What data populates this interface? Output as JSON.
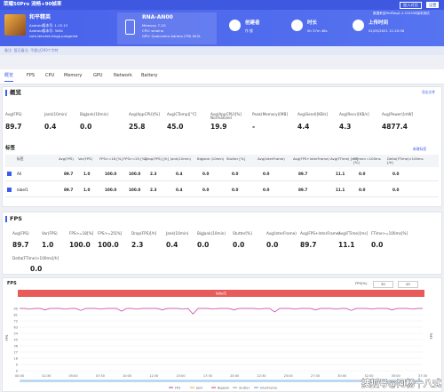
{
  "topbar": {
    "title": "荣耀50Pro 流畅+90帧率",
    "buttons": [
      "加入对比",
      "设置"
    ]
  },
  "header": {
    "app": {
      "name": "和平精英",
      "lines": [
        "Android版本号: 1.15.13",
        "Android版本号: 3061",
        "com.tencent.tmgp.pubgmhd"
      ]
    },
    "device": {
      "name": "RNA-AN00",
      "lines": [
        "Memory: 7.2G",
        "CPU: smalna",
        "GPU: Qualcomm Adreno (TM) 642L"
      ]
    },
    "creator": {
      "label": "创建者",
      "value": "作 掳"
    },
    "duration": {
      "label": "时长",
      "value": "0h 37m 48s"
    },
    "upload": {
      "label": "上传时间",
      "value": "01/05/2021 11:20:36"
    },
    "source": "数据来自PerfDog1.2.210330版本测试"
  },
  "remark": "备注: 暂无备注, 不超过200个字符",
  "tabs": [
    "概览",
    "FPS",
    "CPU",
    "Memory",
    "GPU",
    "Network",
    "Battery"
  ],
  "overview": {
    "title": "概览",
    "export": "导出文件",
    "metrics": [
      {
        "label": "Avg(FPS)",
        "value": "89.7"
      },
      {
        "label": "Jank(10min)",
        "value": "0.4"
      },
      {
        "label": "BigJank(10min)",
        "value": "0.0"
      },
      {
        "label": "Avg(AppCPU)[%]",
        "value": "25.8"
      },
      {
        "label": "Avg(CTemp)[°C]",
        "value": "45.0"
      },
      {
        "label": "Avg(AppCPU)[%] Normalized",
        "value": "19.9"
      },
      {
        "label": "Peak(Memory)[MB]",
        "value": "-"
      },
      {
        "label": "Avg(Send)[KB/s]",
        "value": "4.4"
      },
      {
        "label": "Avg(Recv)[KB/s]",
        "value": "4.3"
      },
      {
        "label": "Avg(Power)[mW]",
        "value": "4877.4"
      }
    ],
    "tags": {
      "title": "标签",
      "link": "新增标签",
      "columns": [
        "标签",
        "Avg(FPS)",
        "Var(FPS)",
        "FPS>=18 [%]",
        "FPS>=25 [%]",
        "Drop(FPS) [/h]",
        "Jank(10min)",
        "BigJank (10min)",
        "Stutter [%]",
        "Avg(InterFrame)",
        "Avg(FPS+InterFrame)",
        "Avg(FTime) [ms]",
        "FTime>=100ms [%]",
        "Delta(FTime)>100ms [/h]"
      ],
      "rows": [
        [
          "All",
          "89.7",
          "1.0",
          "100.0",
          "100.0",
          "2.3",
          "0.4",
          "0.0",
          "0.0",
          "0.0",
          "89.7",
          "11.1",
          "0.0",
          "0.0"
        ],
        [
          "label1",
          "89.7",
          "1.0",
          "100.0",
          "100.0",
          "2.3",
          "0.4",
          "0.0",
          "0.0",
          "0.0",
          "89.7",
          "11.1",
          "0.0",
          "0.0"
        ]
      ]
    }
  },
  "fps": {
    "title": "FPS",
    "metrics": [
      {
        "label": "Avg(FPS)",
        "value": "89.7"
      },
      {
        "label": "Var(FPS)",
        "value": "1.0"
      },
      {
        "label": "FPS>=18[%]",
        "value": "100.0"
      },
      {
        "label": "FPS>=25[%]",
        "value": "100.0"
      },
      {
        "label": "Drop(FPS)[/h]",
        "value": "2.3"
      },
      {
        "label": "Jank(10min)",
        "value": "0.4"
      },
      {
        "label": "BigJank(10min)",
        "value": "0.0"
      },
      {
        "label": "Stutter[%]",
        "value": "0.0"
      },
      {
        "label": "Avg(InterFrame)",
        "value": "0.0"
      },
      {
        "label": "Avg(FPS+InterFrame)",
        "value": "89.7"
      },
      {
        "label": "Avg(FTime)[ms]",
        "value": "11.1"
      },
      {
        "label": "FTime>=100ms[%]",
        "value": "0.0"
      },
      {
        "label": "Delta(FTime)>100ms[/h]",
        "value": "0.0"
      }
    ]
  },
  "chart": {
    "type": "line",
    "title": "FPS",
    "band": "label1",
    "inputs_label": "FPS(%)",
    "inputs": [
      "30",
      "45"
    ],
    "y_label": "FPS",
    "color": "#c2359b",
    "ylim": [
      0,
      99
    ],
    "yticks": [
      0,
      9,
      18,
      27,
      36,
      45,
      54,
      63,
      72,
      81,
      90
    ],
    "xticks": [
      "00:00",
      "02:30",
      "05:00",
      "07:30",
      "10:00",
      "12:30",
      "15:00",
      "17:30",
      "20:00",
      "22:30",
      "25:00",
      "27:30",
      "30:00",
      "32:30",
      "35:00",
      "37:30"
    ],
    "legend": [
      {
        "name": "FPS",
        "color": "#c2359b"
      },
      {
        "name": "Jank",
        "color": "#f0a040"
      },
      {
        "name": "BigJank",
        "color": "#d04040"
      },
      {
        "name": "Stutter",
        "color": "#8899aa"
      },
      {
        "name": "InterFrame",
        "color": "#5b9bd5"
      }
    ],
    "values": [
      90,
      90,
      89,
      90,
      90,
      88,
      90,
      90,
      90,
      89,
      90,
      90,
      87,
      90,
      90,
      90,
      89,
      90,
      90,
      90,
      86,
      90,
      90,
      89,
      90,
      90,
      90,
      90,
      88,
      90,
      90,
      90,
      89,
      90,
      82,
      90,
      90,
      90,
      89,
      90,
      90,
      90,
      88,
      90,
      90,
      90,
      90,
      89,
      90,
      90,
      85,
      90,
      90,
      90,
      89,
      90,
      90,
      90,
      88,
      90,
      90,
      90,
      89,
      90,
      90,
      87,
      90,
      90,
      90,
      89,
      90,
      90,
      90,
      88,
      90,
      90,
      90,
      89,
      90,
      90
    ]
  },
  "watermark": "搜狐号@阿杨十八式"
}
